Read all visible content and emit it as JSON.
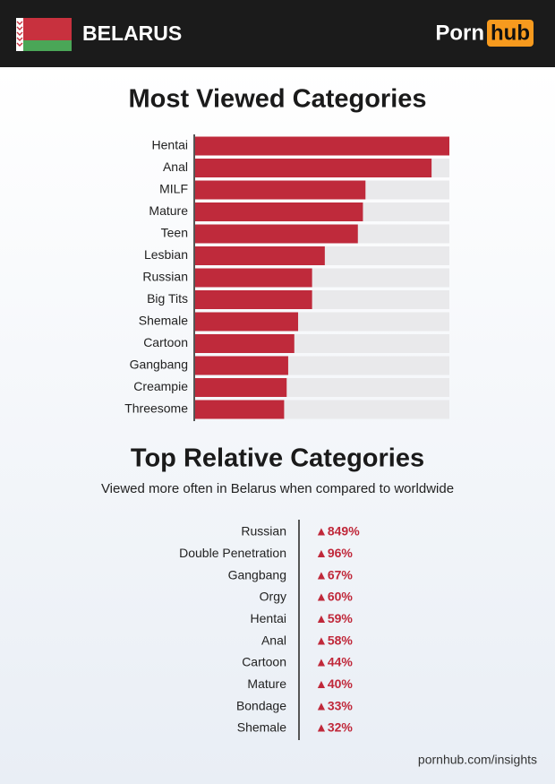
{
  "header": {
    "country": "BELARUS",
    "logo_left": "Porn",
    "logo_right": "hub"
  },
  "chart_data": [
    {
      "type": "bar",
      "title": "Most Viewed Categories",
      "categories": [
        "Hentai",
        "Anal",
        "MILF",
        "Mature",
        "Teen",
        "Lesbian",
        "Russian",
        "Big Tits",
        "Shemale",
        "Cartoon",
        "Gangbang",
        "Creampie",
        "Threesome"
      ],
      "values": [
        100,
        93,
        67,
        66,
        64,
        51,
        46,
        46,
        40.5,
        39,
        36.6,
        36,
        35
      ],
      "xlim": [
        0,
        100
      ],
      "color": "#bf2a3b",
      "track_color": "#e9e9eb"
    },
    {
      "type": "list",
      "title": "Top Relative Categories",
      "subtitle": "Viewed more often in Belarus when compared to worldwide",
      "categories": [
        "Russian",
        "Double Penetration",
        "Gangbang",
        "Orgy",
        "Hentai",
        "Anal",
        "Cartoon",
        "Mature",
        "Bondage",
        "Shemale"
      ],
      "values": [
        849,
        96,
        67,
        60,
        59,
        58,
        44,
        40,
        33,
        32
      ],
      "value_labels": [
        "▲849%",
        "▲96%",
        "▲67%",
        "▲60%",
        "▲59%",
        "▲58%",
        "▲44%",
        "▲40%",
        "▲33%",
        "▲32%"
      ],
      "color": "#c0283a"
    }
  ],
  "footer": {
    "source": "pornhub.com/insights"
  }
}
